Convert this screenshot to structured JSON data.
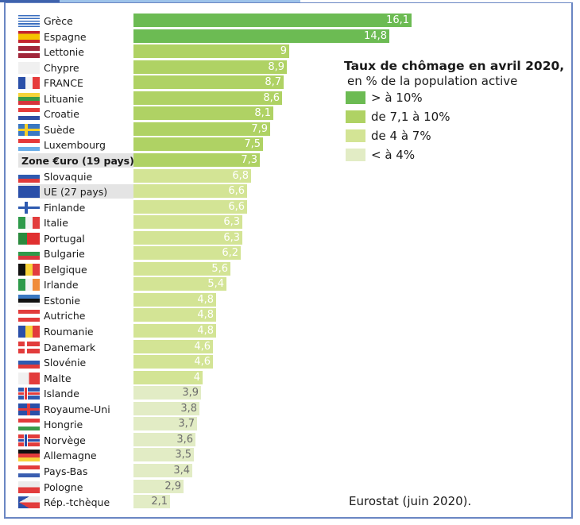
{
  "chart_data": {
    "type": "bar",
    "orientation": "horizontal",
    "title": "Taux de chômage en avril 2020,",
    "subtitle": "en % de la population active",
    "source": "Eurostat (juin 2020).",
    "xlim": [
      0,
      16.1
    ],
    "grid": false,
    "legend_position": "top-right",
    "legend": [
      {
        "label": "> à 10%",
        "color": "#6cbb53"
      },
      {
        "label": "de 7,1 à 10%",
        "color": "#afd264"
      },
      {
        "label": "de 4 à 7%",
        "color": "#d3e495"
      },
      {
        "label": "< à 4%",
        "color": "#e2ecc5"
      }
    ],
    "categories": [
      "Grèce",
      "Espagne",
      "Lettonie",
      "Chypre",
      "FRANCE",
      "Lituanie",
      "Croatie",
      "Suède",
      "Luxembourg",
      "Zone €uro (19 pays)",
      "Slovaquie",
      "UE (27 pays)",
      "Finlande",
      "Italie",
      "Portugal",
      "Bulgarie",
      "Belgique",
      "Irlande",
      "Estonie",
      "Autriche",
      "Roumanie",
      "Danemark",
      "Slovénie",
      "Malte",
      "Islande",
      "Royaume-Uni",
      "Hongrie",
      "Norvège",
      "Allemagne",
      "Pays-Bas",
      "Pologne",
      "Rép.-tchèque"
    ],
    "values": [
      16.1,
      14.8,
      9,
      8.9,
      8.7,
      8.6,
      8.1,
      7.9,
      7.5,
      7.3,
      6.8,
      6.6,
      6.6,
      6.3,
      6.3,
      6.2,
      5.6,
      5.4,
      4.8,
      4.8,
      4.8,
      4.6,
      4.6,
      4,
      3.9,
      3.8,
      3.7,
      3.6,
      3.5,
      3.4,
      2.9,
      2.1
    ],
    "value_labels": [
      "16,1",
      "14,8",
      "9",
      "8,9",
      "8,7",
      "8,6",
      "8,1",
      "7,9",
      "7,5",
      "7,3",
      "6,8",
      "6,6",
      "6,6",
      "6,3",
      "6,3",
      "6,2",
      "5,6",
      "5,4",
      "4,8",
      "4,8",
      "4,8",
      "4,6",
      "4,6",
      "4",
      "3,9",
      "3,8",
      "3,7",
      "3,6",
      "3,5",
      "3,4",
      "2,9",
      "2,1"
    ],
    "highlighted": [
      "Zone €uro (19 pays)",
      "UE (27 pays)"
    ],
    "flags": [
      "greece",
      "spain",
      "latvia",
      "cyprus",
      "france",
      "lithuania",
      "croatia",
      "sweden",
      "luxembourg",
      "",
      "slovakia",
      "eu",
      "finland",
      "italy",
      "portugal",
      "bulgaria",
      "belgium",
      "ireland",
      "estonia",
      "austria",
      "romania",
      "denmark",
      "slovenia",
      "malta",
      "iceland",
      "uk",
      "hungary",
      "norway",
      "germany",
      "netherlands",
      "poland",
      "czechia"
    ]
  },
  "colors": {
    "frame": "#6a86c3",
    "label_dark": "#6d6d6d",
    "label_light": "#ffffff",
    "highlight_bg": "#e4e4e4"
  }
}
